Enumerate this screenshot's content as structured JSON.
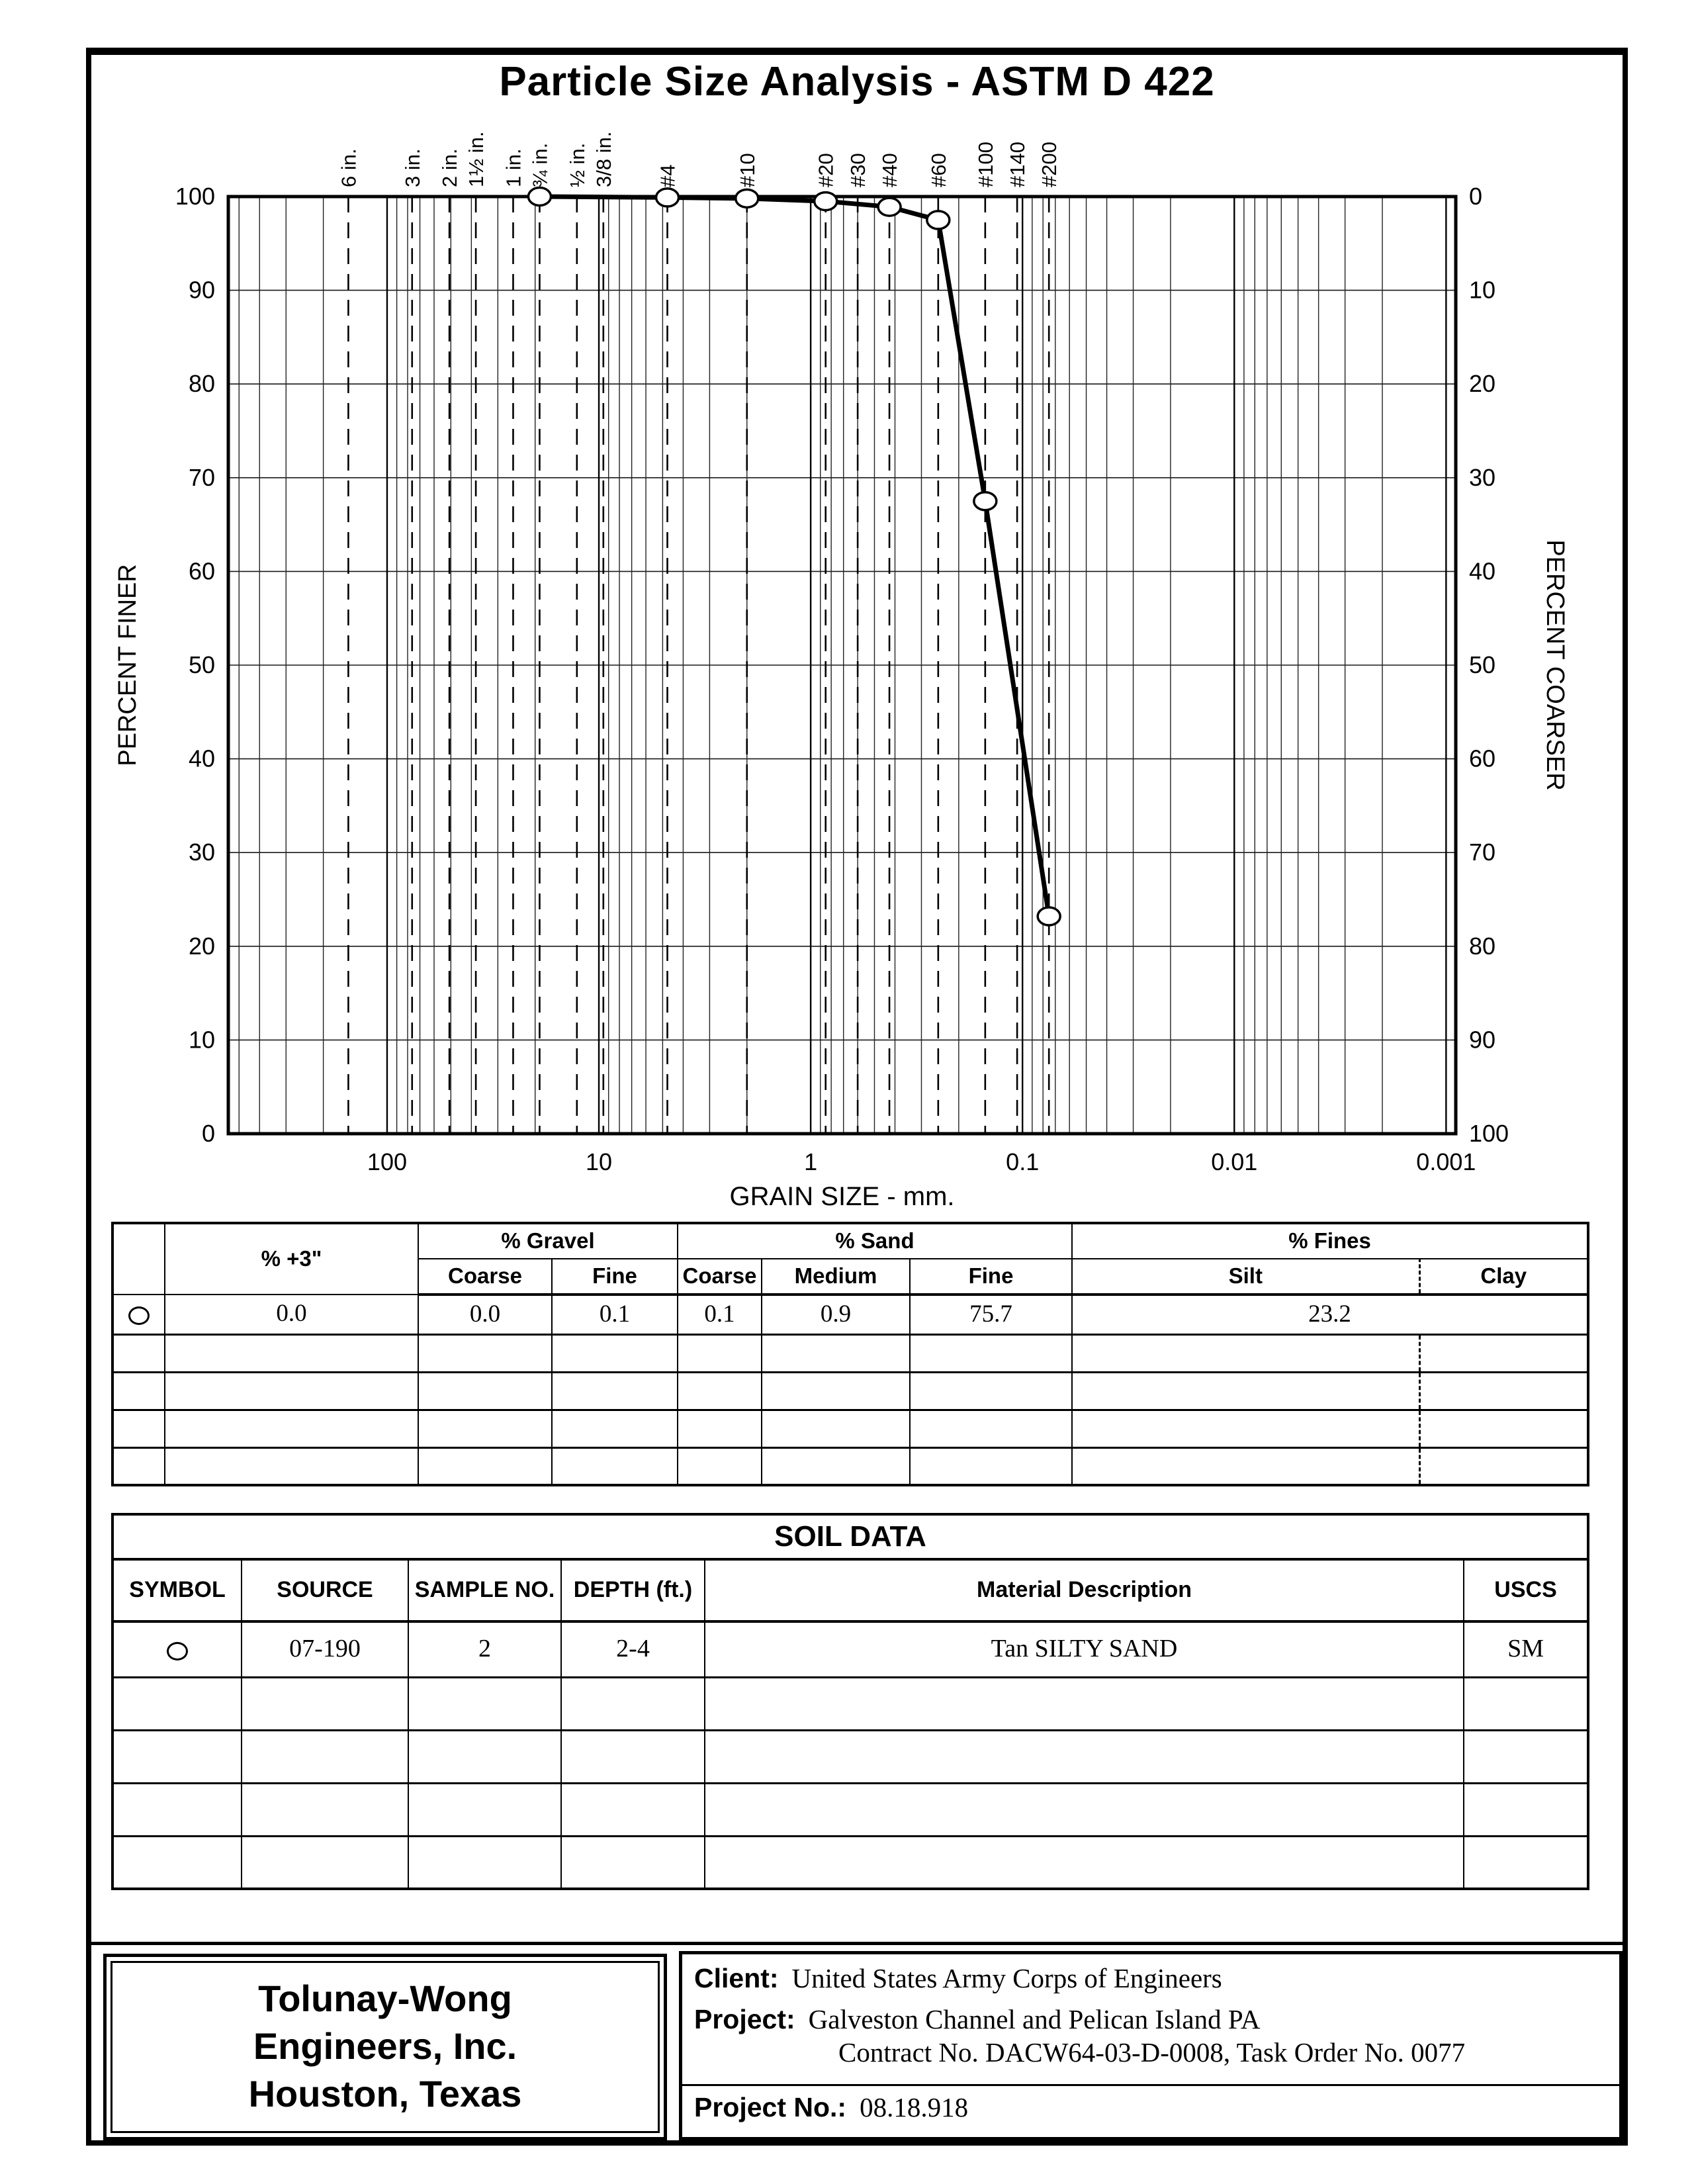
{
  "page": {
    "title": "Particle Size Analysis - ASTM D 422"
  },
  "chart_data": {
    "type": "line",
    "title": "Particle Size Analysis - ASTM D 422",
    "xlabel": "GRAIN SIZE - mm.",
    "ylabel_left": "PERCENT FINER",
    "ylabel_right": "PERCENT COARSER",
    "x_scale": "log",
    "x_range_mm": [
      562,
      0.0009
    ],
    "x_tick_values": [
      100,
      10,
      1,
      0.1,
      0.01,
      0.001
    ],
    "x_tick_labels": [
      "100",
      "10",
      "1",
      "0.1",
      "0.01",
      "0.001"
    ],
    "ylim": [
      0,
      100
    ],
    "y_tick_step": 10,
    "grid": true,
    "legend_position": "none",
    "sieves": [
      {
        "label": "6 in.",
        "mm": 152.4
      },
      {
        "label": "3 in.",
        "mm": 76.2
      },
      {
        "label": "2 in.",
        "mm": 50.8
      },
      {
        "label": "1½ in.",
        "mm": 38.1
      },
      {
        "label": "1 in.",
        "mm": 25.4
      },
      {
        "label": "¾ in.",
        "mm": 19.05
      },
      {
        "label": "½ in.",
        "mm": 12.7
      },
      {
        "label": "3/8 in.",
        "mm": 9.525
      },
      {
        "label": "#4",
        "mm": 4.75
      },
      {
        "label": "#10",
        "mm": 2.0
      },
      {
        "label": "#20",
        "mm": 0.85
      },
      {
        "label": "#30",
        "mm": 0.6
      },
      {
        "label": "#40",
        "mm": 0.425
      },
      {
        "label": "#60",
        "mm": 0.25
      },
      {
        "label": "#100",
        "mm": 0.15
      },
      {
        "label": "#140",
        "mm": 0.106
      },
      {
        "label": "#200",
        "mm": 0.075
      }
    ],
    "series": [
      {
        "name": "Source 07-190, Sample 2, Depth 2-4 ft",
        "marker": "open-circle",
        "points_mm_percent_finer": [
          [
            19.05,
            100
          ],
          [
            4.75,
            99.9
          ],
          [
            2.0,
            99.8
          ],
          [
            0.85,
            99.5
          ],
          [
            0.425,
            98.9
          ],
          [
            0.25,
            97.5
          ],
          [
            0.15,
            67.5
          ],
          [
            0.075,
            23.2
          ]
        ]
      }
    ]
  },
  "grading_table": {
    "group_headers": {
      "plus3": "% +3\"",
      "gravel": "% Gravel",
      "sand": "% Sand",
      "fines": "% Fines"
    },
    "sub_headers": {
      "gravel_coarse": "Coarse",
      "gravel_fine": "Fine",
      "sand_coarse": "Coarse",
      "sand_medium": "Medium",
      "sand_fine": "Fine",
      "silt": "Silt",
      "clay": "Clay"
    },
    "row": {
      "symbol": "open-circle",
      "plus3": "0.0",
      "gravel_coarse": "0.0",
      "gravel_fine": "0.1",
      "sand_coarse": "0.1",
      "sand_medium": "0.9",
      "sand_fine": "75.7",
      "fines_silt_clay": "23.2"
    },
    "empty_row_count": 4
  },
  "soil_data_table": {
    "title": "SOIL DATA",
    "headers": {
      "symbol": "SYMBOL",
      "source": "SOURCE",
      "sample_no": "SAMPLE NO.",
      "depth": "DEPTH (ft.)",
      "material_description": "Material Description",
      "uscs": "USCS"
    },
    "row": {
      "symbol": "open-circle",
      "source": "07-190",
      "sample_no": "2",
      "depth": "2-4",
      "material_description": "Tan SILTY SAND",
      "uscs": "SM"
    },
    "empty_row_count": 4
  },
  "footer": {
    "company": {
      "line1": "Tolunay-Wong",
      "line2": "Engineers, Inc.",
      "line3": "Houston, Texas"
    },
    "client_label": "Client:",
    "client": "United States Army Corps of Engineers",
    "project_label": "Project:",
    "project_line1": "Galveston Channel and Pelican Island PA",
    "project_line2": "Contract No. DACW64-03-D-0008, Task Order No. 0077",
    "project_no_label": "Project No.:",
    "project_no": "08.18.918"
  }
}
